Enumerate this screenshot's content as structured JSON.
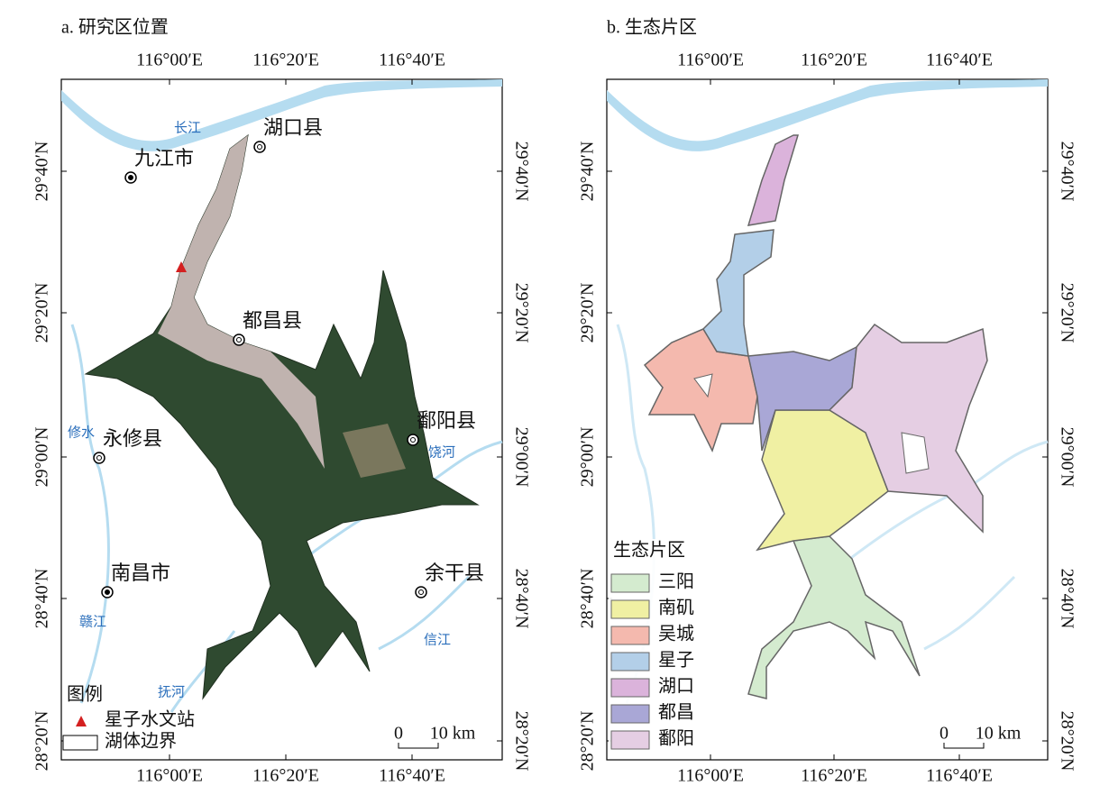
{
  "panels": [
    {
      "title": "a. 研究区位置",
      "x_ticks": [
        "116°00′E",
        "116°20′E",
        "116°40′E"
      ],
      "y_ticks": [
        "29°40′N",
        "29°20′N",
        "29°00′N",
        "28°40′N",
        "28°20′N"
      ],
      "places": [
        "湖口县",
        "九江市",
        "都昌县",
        "鄱阳县",
        "永修县",
        "南昌市",
        "余干县"
      ],
      "rivers": [
        "长江",
        "修水",
        "饶河",
        "赣江",
        "抚河",
        "信江"
      ],
      "legend": {
        "title": "图例",
        "items": [
          "星子水文站",
          "湖体边界"
        ]
      },
      "scale": {
        "zero": "0",
        "label": "10 km"
      }
    },
    {
      "title": "b. 生态片区",
      "x_ticks": [
        "116°00′E",
        "116°20′E",
        "116°40′E"
      ],
      "y_ticks": [
        "29°40′N",
        "29°20′N",
        "29°00′N",
        "28°40′N",
        "28°20′N"
      ],
      "legend": {
        "title": "生态片区",
        "items": [
          {
            "label": "三阳",
            "color": "#d4ebcf"
          },
          {
            "label": "南矶",
            "color": "#f0f0a3"
          },
          {
            "label": "吴城",
            "color": "#f4b9ae"
          },
          {
            "label": "星子",
            "color": "#b3cfe8"
          },
          {
            "label": "湖口",
            "color": "#dbb3db"
          },
          {
            "label": "都昌",
            "color": "#a9a7d6"
          },
          {
            "label": "鄱阳",
            "color": "#e5cee3"
          }
        ]
      },
      "scale": {
        "zero": "0",
        "label": "10 km"
      }
    }
  ]
}
